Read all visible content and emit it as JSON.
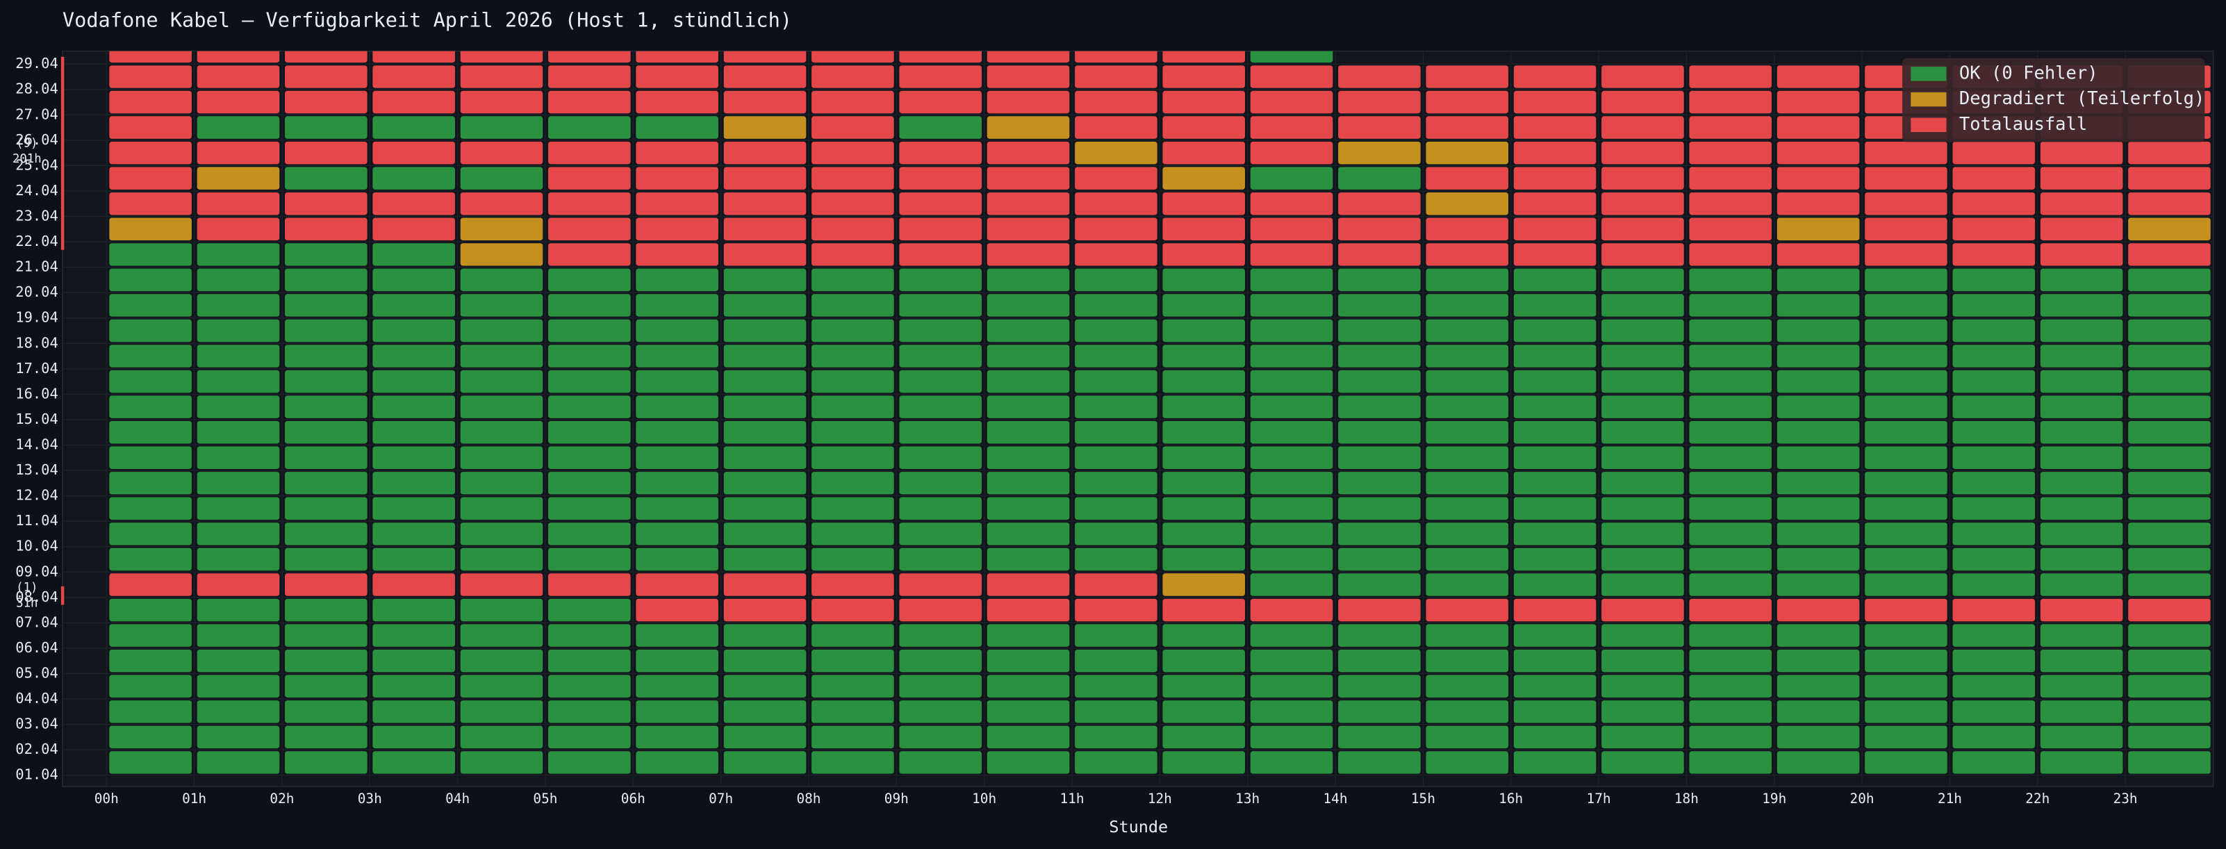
{
  "chart_data": {
    "type": "heatmap",
    "title": "Vodafone Kabel – Verfügbarkeit April 2026 (Host 1, stündlich)",
    "x_label": "Stunde",
    "x_categories": [
      "00h",
      "01h",
      "02h",
      "03h",
      "04h",
      "05h",
      "06h",
      "07h",
      "08h",
      "09h",
      "10h",
      "11h",
      "12h",
      "13h",
      "14h",
      "15h",
      "16h",
      "17h",
      "18h",
      "19h",
      "20h",
      "21h",
      "22h",
      "23h"
    ],
    "y_categories": [
      "01.04",
      "02.04",
      "03.04",
      "04.04",
      "05.04",
      "06.04",
      "07.04",
      "08.04",
      "09.04",
      "10.04",
      "11.04",
      "12.04",
      "13.04",
      "14.04",
      "15.04",
      "16.04",
      "17.04",
      "18.04",
      "19.04",
      "20.04",
      "21.04",
      "22.04",
      "23.04",
      "24.04",
      "25.04",
      "26.04",
      "27.04",
      "28.04",
      "29.04"
    ],
    "legend_items": [
      {
        "name": "OK (0 Fehler)",
        "color": "#2a9140"
      },
      {
        "name": "Degradiert (Teilerfolg)",
        "color": "#c4901f"
      },
      {
        "name": "Totalausfall",
        "color": "#e5484a"
      }
    ],
    "legend_position": "upper right",
    "z": [
      [
        0,
        0,
        0,
        0,
        0,
        0,
        0,
        0,
        0,
        0,
        0,
        0,
        0,
        0,
        0,
        0,
        0,
        0,
        0,
        0,
        0,
        0,
        0,
        0
      ],
      [
        0,
        0,
        0,
        0,
        0,
        0,
        0,
        0,
        0,
        0,
        0,
        0,
        0,
        0,
        0,
        0,
        0,
        0,
        0,
        0,
        0,
        0,
        0,
        0
      ],
      [
        0,
        0,
        0,
        0,
        0,
        0,
        0,
        0,
        0,
        0,
        0,
        0,
        0,
        0,
        0,
        0,
        0,
        0,
        0,
        0,
        0,
        0,
        0,
        0
      ],
      [
        0,
        0,
        0,
        0,
        0,
        0,
        0,
        0,
        0,
        0,
        0,
        0,
        0,
        0,
        0,
        0,
        0,
        0,
        0,
        0,
        0,
        0,
        0,
        0
      ],
      [
        0,
        0,
        0,
        0,
        0,
        0,
        0,
        0,
        0,
        0,
        0,
        0,
        0,
        0,
        0,
        0,
        0,
        0,
        0,
        0,
        0,
        0,
        0,
        0
      ],
      [
        0,
        0,
        0,
        0,
        0,
        0,
        0,
        0,
        0,
        0,
        0,
        0,
        0,
        0,
        0,
        0,
        0,
        0,
        0,
        0,
        0,
        0,
        0,
        0
      ],
      [
        0,
        0,
        0,
        0,
        0,
        0,
        2,
        2,
        2,
        2,
        2,
        2,
        2,
        2,
        2,
        2,
        2,
        2,
        2,
        2,
        2,
        2,
        2,
        2
      ],
      [
        2,
        2,
        2,
        2,
        2,
        2,
        2,
        2,
        2,
        2,
        2,
        2,
        1,
        0,
        0,
        0,
        0,
        0,
        0,
        0,
        0,
        0,
        0,
        0
      ],
      [
        0,
        0,
        0,
        0,
        0,
        0,
        0,
        0,
        0,
        0,
        0,
        0,
        0,
        0,
        0,
        0,
        0,
        0,
        0,
        0,
        0,
        0,
        0,
        0
      ],
      [
        0,
        0,
        0,
        0,
        0,
        0,
        0,
        0,
        0,
        0,
        0,
        0,
        0,
        0,
        0,
        0,
        0,
        0,
        0,
        0,
        0,
        0,
        0,
        0
      ],
      [
        0,
        0,
        0,
        0,
        0,
        0,
        0,
        0,
        0,
        0,
        0,
        0,
        0,
        0,
        0,
        0,
        0,
        0,
        0,
        0,
        0,
        0,
        0,
        0
      ],
      [
        0,
        0,
        0,
        0,
        0,
        0,
        0,
        0,
        0,
        0,
        0,
        0,
        0,
        0,
        0,
        0,
        0,
        0,
        0,
        0,
        0,
        0,
        0,
        0
      ],
      [
        0,
        0,
        0,
        0,
        0,
        0,
        0,
        0,
        0,
        0,
        0,
        0,
        0,
        0,
        0,
        0,
        0,
        0,
        0,
        0,
        0,
        0,
        0,
        0
      ],
      [
        0,
        0,
        0,
        0,
        0,
        0,
        0,
        0,
        0,
        0,
        0,
        0,
        0,
        0,
        0,
        0,
        0,
        0,
        0,
        0,
        0,
        0,
        0,
        0
      ],
      [
        0,
        0,
        0,
        0,
        0,
        0,
        0,
        0,
        0,
        0,
        0,
        0,
        0,
        0,
        0,
        0,
        0,
        0,
        0,
        0,
        0,
        0,
        0,
        0
      ],
      [
        0,
        0,
        0,
        0,
        0,
        0,
        0,
        0,
        0,
        0,
        0,
        0,
        0,
        0,
        0,
        0,
        0,
        0,
        0,
        0,
        0,
        0,
        0,
        0
      ],
      [
        0,
        0,
        0,
        0,
        0,
        0,
        0,
        0,
        0,
        0,
        0,
        0,
        0,
        0,
        0,
        0,
        0,
        0,
        0,
        0,
        0,
        0,
        0,
        0
      ],
      [
        0,
        0,
        0,
        0,
        0,
        0,
        0,
        0,
        0,
        0,
        0,
        0,
        0,
        0,
        0,
        0,
        0,
        0,
        0,
        0,
        0,
        0,
        0,
        0
      ],
      [
        0,
        0,
        0,
        0,
        0,
        0,
        0,
        0,
        0,
        0,
        0,
        0,
        0,
        0,
        0,
        0,
        0,
        0,
        0,
        0,
        0,
        0,
        0,
        0
      ],
      [
        0,
        0,
        0,
        0,
        0,
        0,
        0,
        0,
        0,
        0,
        0,
        0,
        0,
        0,
        0,
        0,
        0,
        0,
        0,
        0,
        0,
        0,
        0,
        0
      ],
      [
        0,
        0,
        0,
        0,
        1,
        2,
        2,
        2,
        2,
        2,
        2,
        2,
        2,
        2,
        2,
        2,
        2,
        2,
        2,
        2,
        2,
        2,
        2,
        2
      ],
      [
        1,
        2,
        2,
        2,
        1,
        2,
        2,
        2,
        2,
        2,
        2,
        2,
        2,
        2,
        2,
        2,
        2,
        2,
        2,
        1,
        2,
        2,
        2,
        1
      ],
      [
        2,
        2,
        2,
        2,
        2,
        2,
        2,
        2,
        2,
        2,
        2,
        2,
        2,
        2,
        2,
        1,
        2,
        2,
        2,
        2,
        2,
        2,
        2,
        2
      ],
      [
        2,
        1,
        0,
        0,
        0,
        2,
        2,
        2,
        2,
        2,
        2,
        2,
        1,
        0,
        0,
        2,
        2,
        2,
        2,
        2,
        2,
        2,
        2,
        2
      ],
      [
        2,
        2,
        2,
        2,
        2,
        2,
        2,
        2,
        2,
        2,
        2,
        1,
        2,
        2,
        1,
        1,
        2,
        2,
        2,
        2,
        2,
        2,
        2,
        2
      ],
      [
        2,
        0,
        0,
        0,
        0,
        0,
        0,
        1,
        2,
        0,
        1,
        2,
        2,
        2,
        2,
        2,
        2,
        2,
        2,
        2,
        2,
        2,
        2,
        2
      ],
      [
        2,
        2,
        2,
        2,
        2,
        2,
        2,
        2,
        2,
        2,
        2,
        2,
        2,
        2,
        2,
        2,
        2,
        2,
        2,
        2,
        2,
        2,
        2,
        2
      ],
      [
        2,
        2,
        2,
        2,
        2,
        2,
        2,
        2,
        2,
        2,
        2,
        2,
        2,
        2,
        2,
        2,
        2,
        2,
        2,
        2,
        2,
        2,
        2,
        2
      ],
      [
        2,
        2,
        2,
        2,
        2,
        2,
        2,
        2,
        2,
        2,
        2,
        2,
        2,
        0,
        null,
        null,
        null,
        null,
        null,
        null,
        null,
        null,
        null,
        null
      ]
    ],
    "annotations": [
      {
        "count": "(9)",
        "hours": "201h"
      },
      {
        "count": "(1)",
        "hours": "31h"
      }
    ]
  }
}
